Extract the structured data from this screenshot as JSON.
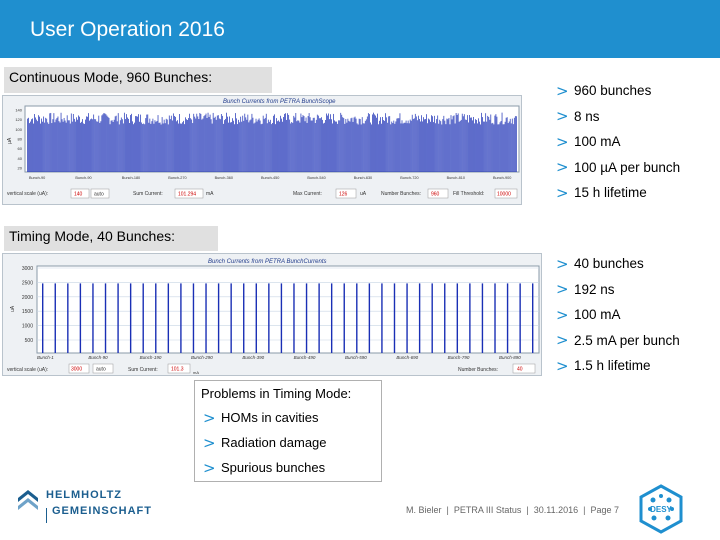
{
  "slide": {
    "title": "User Operation 2016",
    "accent_color": "#1f8fcf"
  },
  "continuous": {
    "label": "Continuous Mode, 960 Bunches:",
    "bullets": [
      "960 bunches",
      "8 ns",
      "100 mA",
      "100 µA per bunch",
      "15 h lifetime"
    ],
    "screen_title": "Bunch Currents from PETRA BunchScope",
    "y_ticks": [
      "140",
      "120",
      "100",
      "80",
      "60",
      "40",
      "20"
    ],
    "ylabel": "µA",
    "x_ticks": [
      "Bunch-90",
      "Bunch-90",
      "Bunch-180",
      "Bunch-270",
      "Bunch-360",
      "Bunch-450",
      "Bunch-540",
      "Bunch-630",
      "Bunch-720",
      "Bunch-810",
      "Bunch-900"
    ],
    "status": {
      "vertical_scale_label": "vertical scale (uA):",
      "vertical_scale_value": "140",
      "vertical_scale_mode": "auto",
      "sum_current_label": "Sum Current:",
      "sum_current_value": "101.294",
      "sum_current_unit": "mA",
      "max_current_label": "Max Current:",
      "max_current_value": "126",
      "max_current_unit": "uA",
      "number_bunches_label": "Number Bunches:",
      "number_bunches_value": "960",
      "fill_threshold_label": "Fill Threshold:",
      "fill_threshold_value": "10000"
    }
  },
  "timing": {
    "label": "Timing Mode, 40 Bunches:",
    "bullets": [
      "40 bunches",
      "192 ns",
      "100 mA",
      "2.5 mA per bunch",
      "1.5 h lifetime"
    ],
    "screen_title": "Bunch Currents from PETRA BunchCurrents",
    "y_ticks": [
      "3000",
      "2500",
      "2000",
      "1500",
      "1000",
      "500"
    ],
    "ylabel": "uA",
    "x_ticks": [
      "Bunch-1",
      "Bunch-90",
      "Bunch-190",
      "Bunch-290",
      "Bunch-390",
      "Bunch-490",
      "Bunch-590",
      "Bunch-690",
      "Bunch-790",
      "Bunch-890"
    ],
    "status": {
      "vertical_scale_label": "vertical scale (uA):",
      "vertical_scale_value": "3000",
      "vertical_scale_mode": "auto",
      "sum_current_label": "Sum Current:",
      "sum_current_value": "101.3",
      "sum_current_unit": "mA",
      "number_bunches_label": "Number Bunches:",
      "number_bunches_value": "40"
    }
  },
  "problems": {
    "title": "Problems in Timing Mode:",
    "bullets": [
      "HOMs in cavities",
      "Radiation damage",
      "Spurious bunches"
    ]
  },
  "bullet_glyph": ">",
  "footer": {
    "author": "M. Bieler",
    "sep": "  |  ",
    "talk": "PETRA III Status",
    "date": "30.11.2016",
    "page": "Page 7"
  },
  "logos": {
    "left_line1": "HELMHOLTZ",
    "left_line2": "GEMEINSCHAFT",
    "right_text": "DESY"
  }
}
